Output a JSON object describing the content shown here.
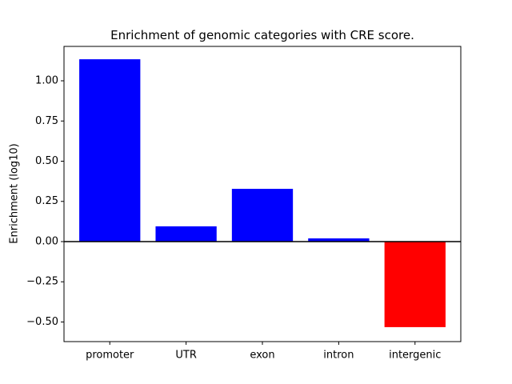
{
  "chart_data": {
    "type": "bar",
    "title": "Enrichment of genomic categories with CRE score.",
    "y_label": "Enrichment (log10)",
    "categories": [
      "promoter",
      "UTR",
      "exon",
      "intron",
      "intergenic"
    ],
    "values": [
      1.134,
      0.095,
      0.328,
      0.02,
      -0.532
    ],
    "colors": [
      "#0000ff",
      "#0000ff",
      "#0000ff",
      "#0000ff",
      "#ff0000"
    ],
    "ylim": [
      -0.622,
      1.214
    ],
    "yticks": [
      {
        "value": 1.0,
        "label": "1.00"
      },
      {
        "value": 0.75,
        "label": "0.75"
      },
      {
        "value": 0.5,
        "label": "0.50"
      },
      {
        "value": 0.25,
        "label": "0.25"
      },
      {
        "value": 0,
        "label": "0.00"
      },
      {
        "value": -0.25,
        "label": "−0.25"
      },
      {
        "value": -0.5,
        "label": "−0.50"
      }
    ],
    "hline": 0,
    "grid": false
  }
}
